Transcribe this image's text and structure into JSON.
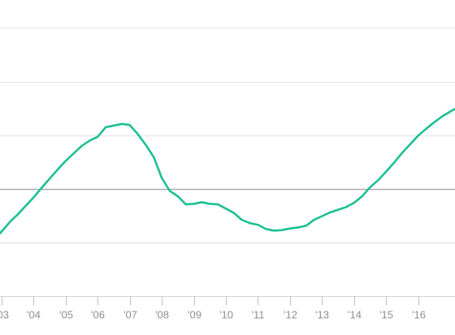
{
  "chart_data": {
    "type": "line",
    "title": "",
    "xlabel": "",
    "ylabel": "",
    "grid": true,
    "legend": "none",
    "xlim": [
      2002.95,
      2017.15
    ],
    "ylim": [
      0,
      5.4
    ],
    "y_gridlines": [
      0,
      1,
      2,
      3,
      4,
      5
    ],
    "reference_line": 2,
    "x_ticks": [
      {
        "x": 2003,
        "label": "'03"
      },
      {
        "x": 2004,
        "label": "'04"
      },
      {
        "x": 2005,
        "label": "'05"
      },
      {
        "x": 2006,
        "label": "'06"
      },
      {
        "x": 2007,
        "label": "'07"
      },
      {
        "x": 2008,
        "label": "'08"
      },
      {
        "x": 2009,
        "label": "'09"
      },
      {
        "x": 2010,
        "label": "'10"
      },
      {
        "x": 2011,
        "label": "'11"
      },
      {
        "x": 2012,
        "label": "'12"
      },
      {
        "x": 2013,
        "label": "'13"
      },
      {
        "x": 2014,
        "label": "'14"
      },
      {
        "x": 2015,
        "label": "'15"
      },
      {
        "x": 2016,
        "label": "'16"
      }
    ],
    "series": [
      {
        "color": "#1dbf94",
        "points": [
          [
            2002.95,
            1.17
          ],
          [
            2003.1,
            1.27
          ],
          [
            2003.3,
            1.41
          ],
          [
            2003.5,
            1.52
          ],
          [
            2003.75,
            1.68
          ],
          [
            2004.0,
            1.84
          ],
          [
            2004.25,
            2.02
          ],
          [
            2004.5,
            2.19
          ],
          [
            2004.75,
            2.36
          ],
          [
            2005.0,
            2.52
          ],
          [
            2005.25,
            2.66
          ],
          [
            2005.5,
            2.8
          ],
          [
            2005.75,
            2.9
          ],
          [
            2006.0,
            2.97
          ],
          [
            2006.25,
            3.15
          ],
          [
            2006.5,
            3.18
          ],
          [
            2006.75,
            3.21
          ],
          [
            2007.0,
            3.19
          ],
          [
            2007.25,
            3.02
          ],
          [
            2007.5,
            2.82
          ],
          [
            2007.75,
            2.59
          ],
          [
            2008.0,
            2.2
          ],
          [
            2008.25,
            1.96
          ],
          [
            2008.5,
            1.86
          ],
          [
            2008.75,
            1.71
          ],
          [
            2009.0,
            1.72
          ],
          [
            2009.25,
            1.75
          ],
          [
            2009.5,
            1.72
          ],
          [
            2009.75,
            1.71
          ],
          [
            2010.0,
            1.63
          ],
          [
            2010.25,
            1.55
          ],
          [
            2010.5,
            1.42
          ],
          [
            2010.75,
            1.36
          ],
          [
            2011.0,
            1.33
          ],
          [
            2011.25,
            1.25
          ],
          [
            2011.5,
            1.22
          ],
          [
            2011.75,
            1.23
          ],
          [
            2012.0,
            1.26
          ],
          [
            2012.25,
            1.28
          ],
          [
            2012.5,
            1.31
          ],
          [
            2012.75,
            1.42
          ],
          [
            2013.0,
            1.49
          ],
          [
            2013.25,
            1.56
          ],
          [
            2013.5,
            1.61
          ],
          [
            2013.75,
            1.66
          ],
          [
            2014.0,
            1.74
          ],
          [
            2014.25,
            1.86
          ],
          [
            2014.5,
            2.03
          ],
          [
            2014.75,
            2.16
          ],
          [
            2015.0,
            2.32
          ],
          [
            2015.25,
            2.49
          ],
          [
            2015.5,
            2.67
          ],
          [
            2015.75,
            2.83
          ],
          [
            2016.0,
            2.99
          ],
          [
            2016.25,
            3.12
          ],
          [
            2016.5,
            3.24
          ],
          [
            2016.75,
            3.35
          ],
          [
            2017.0,
            3.44
          ],
          [
            2017.15,
            3.49
          ]
        ]
      }
    ]
  }
}
